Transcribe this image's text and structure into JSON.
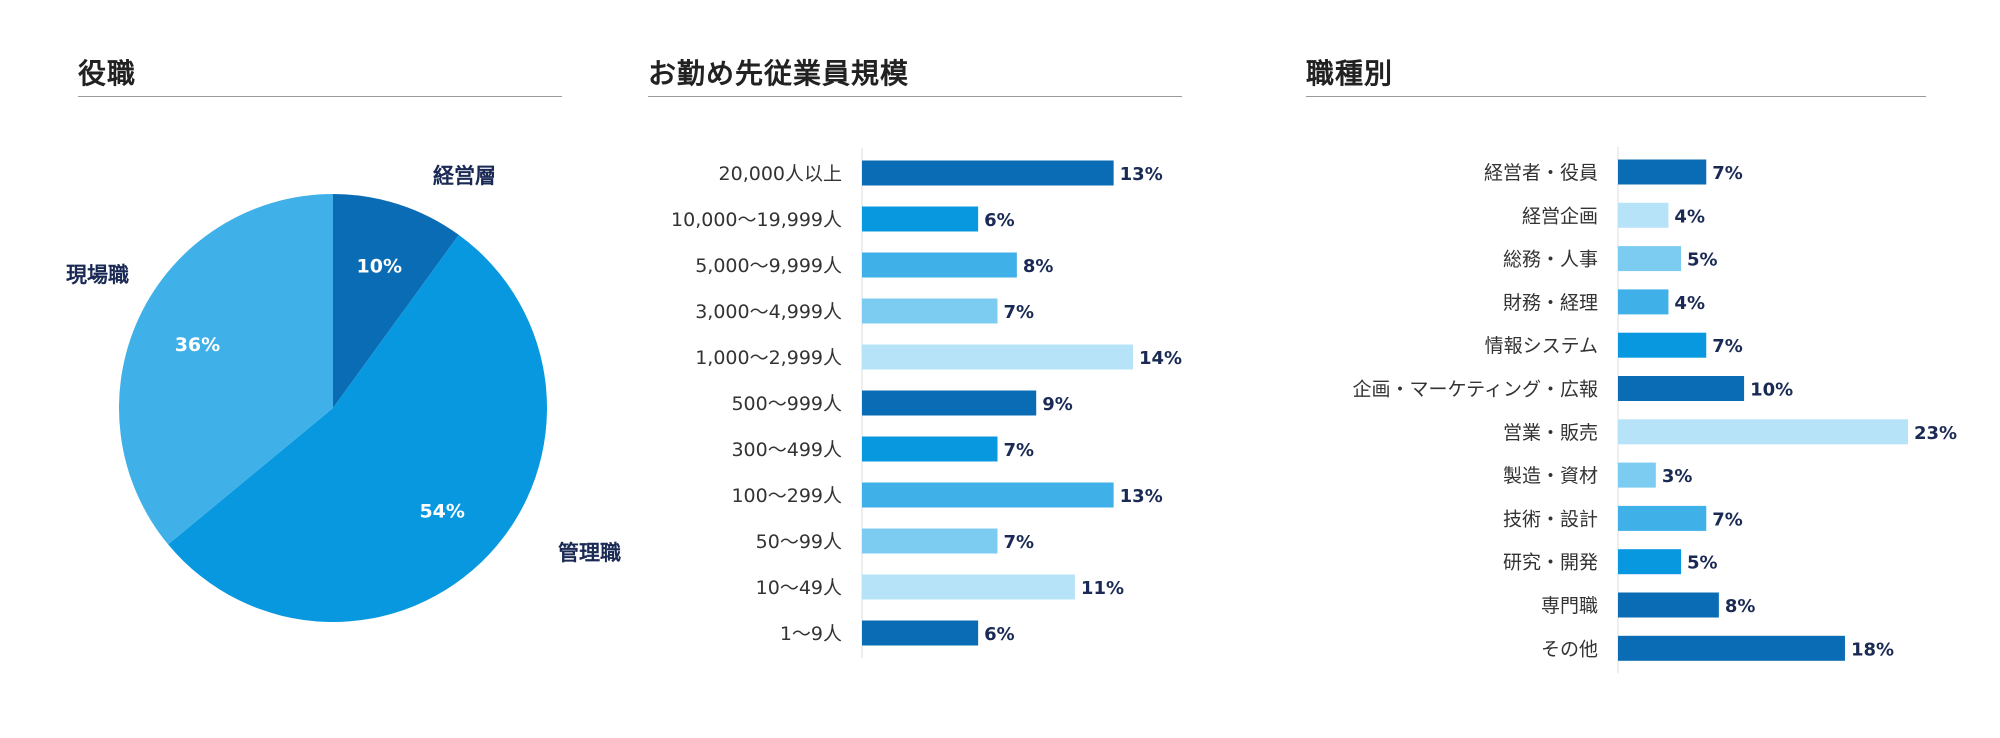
{
  "colors": {
    "dark": "#0a6cb4",
    "mid": "#0898e0",
    "light": "#3fb0e8",
    "lighter": "#7ccbf1",
    "lightest": "#b7e3f9",
    "axis": "#dddddd"
  },
  "chart_data": [
    {
      "type": "pie",
      "title": "役職",
      "slices": [
        {
          "label": "経営層",
          "value": 10,
          "value_label": "10%",
          "color": "#0a6cb4"
        },
        {
          "label": "管理職",
          "value": 54,
          "value_label": "54%",
          "color": "#0898e0"
        },
        {
          "label": "現場職",
          "value": 36,
          "value_label": "36%",
          "color": "#3fb0e8"
        }
      ]
    },
    {
      "type": "bar",
      "orientation": "horizontal",
      "title": "お勤め先従業員規模",
      "categories": [
        "20,000人以上",
        "10,000〜19,999人",
        "5,000〜9,999人",
        "3,000〜4,999人",
        "1,000〜2,999人",
        "500〜999人",
        "300〜499人",
        "100〜299人",
        "50〜99人",
        "10〜49人",
        "1〜9人"
      ],
      "values": [
        13,
        6,
        8,
        7,
        14,
        9,
        7,
        13,
        7,
        11,
        6
      ],
      "value_labels": [
        "13%",
        "6%",
        "8%",
        "7%",
        "14%",
        "9%",
        "7%",
        "13%",
        "7%",
        "11%",
        "6%"
      ],
      "colors": [
        "#0a6cb4",
        "#0898e0",
        "#3fb0e8",
        "#7ccbf1",
        "#b7e3f9",
        "#0a6cb4",
        "#0898e0",
        "#3fb0e8",
        "#7ccbf1",
        "#b7e3f9",
        "#0a6cb4"
      ],
      "xlim": [
        0,
        14
      ]
    },
    {
      "type": "bar",
      "orientation": "horizontal",
      "title": "職種別",
      "categories": [
        "経営者・役員",
        "経営企画",
        "総務・人事",
        "財務・経理",
        "情報システム",
        "企画・マーケティング・広報",
        "営業・販売",
        "製造・資材",
        "技術・設計",
        "研究・開発",
        "専門職",
        "その他"
      ],
      "values": [
        7,
        4,
        5,
        4,
        7,
        10,
        23,
        3,
        7,
        5,
        8,
        18
      ],
      "value_labels": [
        "7%",
        "4%",
        "5%",
        "4%",
        "7%",
        "10%",
        "23%",
        "3%",
        "7%",
        "5%",
        "8%",
        "18%"
      ],
      "colors": [
        "#0a6cb4",
        "#b7e3f9",
        "#7ccbf1",
        "#3fb0e8",
        "#0898e0",
        "#0a6cb4",
        "#b7e3f9",
        "#7ccbf1",
        "#3fb0e8",
        "#0898e0",
        "#0a6cb4",
        "#0a6cb4"
      ],
      "xlim": [
        0,
        23
      ]
    }
  ]
}
